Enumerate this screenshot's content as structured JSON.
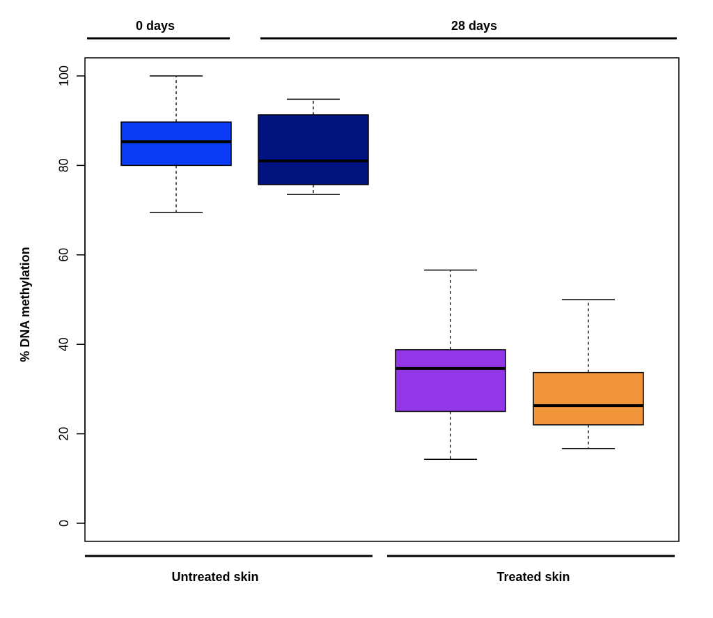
{
  "chart_data": {
    "type": "box",
    "ylabel": "% DNA methylation",
    "ylim": [
      0,
      100
    ],
    "y_ticks": [
      "0",
      "20",
      "40",
      "60",
      "80",
      "100"
    ],
    "grid": false,
    "top_groups": [
      {
        "label": "0 days",
        "boxes": [
          0
        ]
      },
      {
        "label": "28 days",
        "boxes": [
          1,
          2,
          3
        ]
      }
    ],
    "bottom_groups": [
      {
        "label": "Untreated skin",
        "boxes": [
          0,
          1
        ]
      },
      {
        "label": "Treated skin",
        "boxes": [
          2,
          3
        ]
      }
    ],
    "boxes": [
      {
        "color": "#0a3cf5",
        "whisker_low": 69.5,
        "q1": 80,
        "median": 85.3,
        "q3": 89.7,
        "whisker_high": 100
      },
      {
        "color": "#00137f",
        "whisker_low": 73.5,
        "q1": 75.7,
        "median": 81,
        "q3": 91.3,
        "whisker_high": 94.8
      },
      {
        "color": "#9237e8",
        "whisker_low": 14.3,
        "q1": 25,
        "median": 34.6,
        "q3": 38.8,
        "whisker_high": 56.6
      },
      {
        "color": "#f0953a",
        "whisker_low": 16.7,
        "q1": 22,
        "median": 26.3,
        "q3": 33.7,
        "whisker_high": 50
      }
    ]
  }
}
